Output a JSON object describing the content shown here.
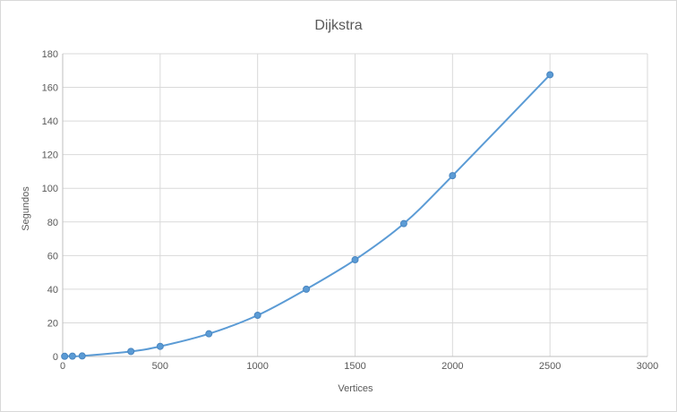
{
  "chart_data": {
    "type": "scatter",
    "title": "Dijkstra",
    "xlabel": "Vertices",
    "ylabel": "Segundos",
    "xlim": [
      0,
      3000
    ],
    "ylim": [
      0,
      180
    ],
    "xticks": [
      0,
      500,
      1000,
      1500,
      2000,
      2500,
      3000
    ],
    "yticks": [
      0,
      20,
      40,
      60,
      80,
      100,
      120,
      140,
      160,
      180
    ],
    "grid": true,
    "legend": "none",
    "smooth_line": true,
    "series": [
      {
        "color": "#5b9bd5",
        "x": [
          10,
          50,
          100,
          350,
          500,
          750,
          1000,
          1250,
          1500,
          1750,
          2000,
          2500
        ],
        "y": [
          0.1,
          0.2,
          0.3,
          3,
          6,
          13.5,
          24.5,
          40,
          57.5,
          79,
          107.5,
          167.5
        ]
      }
    ]
  }
}
